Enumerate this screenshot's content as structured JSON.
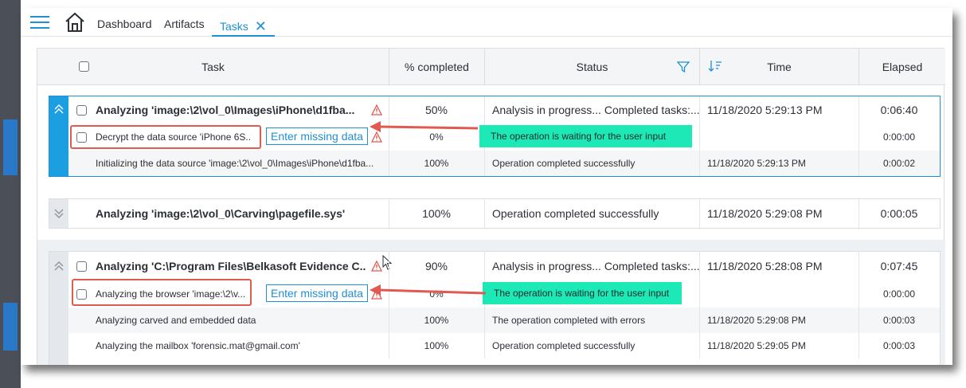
{
  "nav": {
    "dashboard": "Dashboard",
    "artifacts": "Artifacts",
    "tasks": "Tasks",
    "close_glyph": "✕"
  },
  "columns": {
    "task": "Task",
    "percent": "% completed",
    "status": "Status",
    "time": "Time",
    "elapsed": "Elapsed"
  },
  "groups": [
    {
      "main": {
        "task": "Analyzing 'image:\\2\\vol_0\\Images\\iPhone\\d1fba...",
        "percent": "50%",
        "status": "Analysis in progress... Completed tasks:...",
        "time": "11/18/2020 5:29:13 PM",
        "elapsed": "0:06:40"
      },
      "subs": [
        {
          "task": "Decrypt the data source 'iPhone 6S...",
          "action": "Enter missing data",
          "percent": "0%",
          "status": "The operation is waiting for the user input",
          "time": "",
          "elapsed": "0:00:00"
        },
        {
          "task": "Initializing the data source 'image:\\2\\vol_0\\Images\\iPhone\\d1fba...",
          "percent": "100%",
          "status": "Operation completed successfully",
          "time": "11/18/2020 5:29:13 PM",
          "elapsed": "0:00:02"
        }
      ]
    },
    {
      "main": {
        "task": "Analyzing 'image:\\2\\vol_0\\Carving\\pagefile.sys'",
        "percent": "100%",
        "status": "Operation completed successfully",
        "time": "11/18/2020 5:29:08 PM",
        "elapsed": "0:00:05"
      }
    },
    {
      "main": {
        "task": "Analyzing 'C:\\Program Files\\Belkasoft Evidence C...",
        "percent": "90%",
        "status": "Analysis in progress... Completed tasks:...",
        "time": "11/18/2020 5:28:08 PM",
        "elapsed": "0:07:45"
      },
      "subs": [
        {
          "task": "Analyzing the browser 'image:\\2\\v...",
          "action": "Enter missing data",
          "percent": "0%",
          "status": "The operation is waiting for the user input",
          "time": "",
          "elapsed": "0:00:00"
        },
        {
          "task": "Analyzing carved and embedded data",
          "percent": "100%",
          "status": "The operation completed with errors",
          "time": "11/18/2020 5:29:08 PM",
          "elapsed": "0:00:03"
        },
        {
          "task": "Analyzing the mailbox 'forensic.mat@gmail.com'",
          "percent": "100%",
          "status": "Operation completed successfully",
          "time": "11/18/2020 5:29:05 PM",
          "elapsed": "0:00:03"
        }
      ]
    }
  ],
  "colors": {
    "accent": "#1f8fd6",
    "waiting_highlight": "#1de9b6",
    "warning": "#e05a50",
    "callout": "#e05a50"
  }
}
